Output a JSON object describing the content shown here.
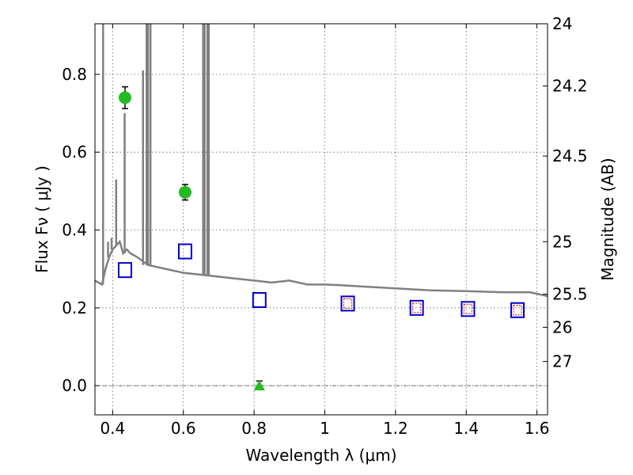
{
  "chart_data": {
    "type": "scatter",
    "xlabel": "Wavelength λ (μm)",
    "ylabel": "Flux  Fν  ( μJy )",
    "y2label": "Magnitude (AB)",
    "xlim": [
      0.35,
      1.63
    ],
    "ylim": [
      -0.075,
      0.93
    ],
    "grid": true,
    "x_ticks": [
      0.4,
      0.6,
      0.8,
      1.0,
      1.2,
      1.4,
      1.6
    ],
    "x_tick_labels": [
      "0.4",
      "0.6",
      "0.8",
      "1",
      "1.2",
      "1.4",
      "1.6"
    ],
    "y_ticks": [
      0.0,
      0.2,
      0.4,
      0.6,
      0.8
    ],
    "y_tick_labels": [
      "0.0",
      "0.2",
      "0.4",
      "0.6",
      "0.8"
    ],
    "y2_ticks": [
      {
        "label": "24",
        "flux": 0.93
      },
      {
        "label": "24.2",
        "flux": 0.77
      },
      {
        "label": "24.5",
        "flux": 0.59
      },
      {
        "label": "25",
        "flux": 0.37
      },
      {
        "label": "25.5",
        "flux": 0.235
      },
      {
        "label": "26",
        "flux": 0.15
      },
      {
        "label": "27",
        "flux": 0.062
      }
    ],
    "series": [
      {
        "kind": "template-spectrum",
        "color": "#808080",
        "x": [
          0.35,
          0.37,
          0.38,
          0.39,
          0.4,
          0.41,
          0.42,
          0.43,
          0.44,
          0.45,
          0.47,
          0.5,
          0.55,
          0.6,
          0.65,
          0.7,
          0.75,
          0.8,
          0.85,
          0.9,
          0.95,
          1.0,
          1.05,
          1.1,
          1.2,
          1.3,
          1.4,
          1.5,
          1.58,
          1.63
        ],
        "y": [
          0.27,
          0.26,
          0.3,
          0.33,
          0.35,
          0.36,
          0.37,
          0.34,
          0.35,
          0.34,
          0.33,
          0.31,
          0.3,
          0.29,
          0.285,
          0.28,
          0.275,
          0.27,
          0.265,
          0.27,
          0.26,
          0.26,
          0.258,
          0.255,
          0.25,
          0.245,
          0.243,
          0.24,
          0.24,
          0.23
        ],
        "emission_lines": [
          {
            "x": 0.373,
            "peak": 0.93
          },
          {
            "x": 0.387,
            "peak": 0.37
          },
          {
            "x": 0.397,
            "peak": 0.38
          },
          {
            "x": 0.41,
            "peak": 0.53
          },
          {
            "x": 0.434,
            "peak": 0.7
          },
          {
            "x": 0.486,
            "peak": 0.81
          },
          {
            "x": 0.496,
            "peak": 0.93
          },
          {
            "x": 0.5,
            "peak": 0.93
          },
          {
            "x": 0.507,
            "peak": 0.93
          },
          {
            "x": 0.656,
            "peak": 0.93
          },
          {
            "x": 0.66,
            "peak": 0.93
          },
          {
            "x": 0.668,
            "peak": 0.93
          },
          {
            "x": 0.672,
            "peak": 0.93
          }
        ]
      },
      {
        "kind": "observed-detections",
        "marker": "circle",
        "color": "#22bb22",
        "x": [
          0.435,
          0.605
        ],
        "y": [
          0.74,
          0.497
        ],
        "err": [
          0.028,
          0.02
        ]
      },
      {
        "kind": "observed-upper-limit",
        "marker": "triangle",
        "color": "#22bb22",
        "x": [
          0.815
        ],
        "y": [
          0.0
        ],
        "err": [
          0.012
        ]
      },
      {
        "kind": "model-bandflux",
        "marker": "square",
        "color": "#0000cc",
        "x": [
          0.435,
          0.605,
          0.815,
          1.065,
          1.26,
          1.405,
          1.545
        ],
        "y": [
          0.297,
          0.345,
          0.22,
          0.211,
          0.2,
          0.197,
          0.194
        ]
      },
      {
        "kind": "model-bandflux-small",
        "marker": "square-small",
        "color": "#dd2222",
        "x": [
          1.065,
          1.26,
          1.405,
          1.545
        ],
        "y": [
          0.211,
          0.2,
          0.197,
          0.194
        ]
      }
    ]
  }
}
